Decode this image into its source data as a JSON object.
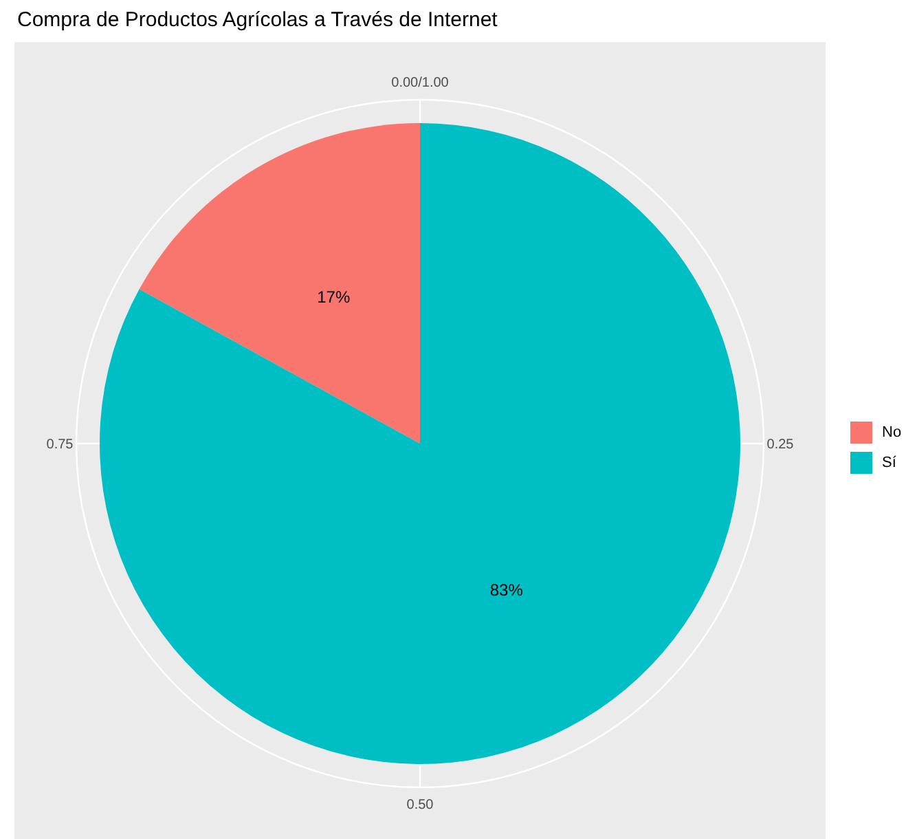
{
  "chart_data": {
    "type": "pie",
    "title": "Compra de Productos Agrícolas a Través de Internet",
    "categories": [
      "No",
      "Sí"
    ],
    "values": [
      17,
      83
    ],
    "colors": [
      "#f8766d",
      "#00bfc4"
    ],
    "value_labels": [
      "17%",
      "83%"
    ],
    "annotations": [
      "0.00/1.00",
      "0.25",
      "0.50",
      "0.75"
    ],
    "grid": true,
    "legend": "right"
  }
}
